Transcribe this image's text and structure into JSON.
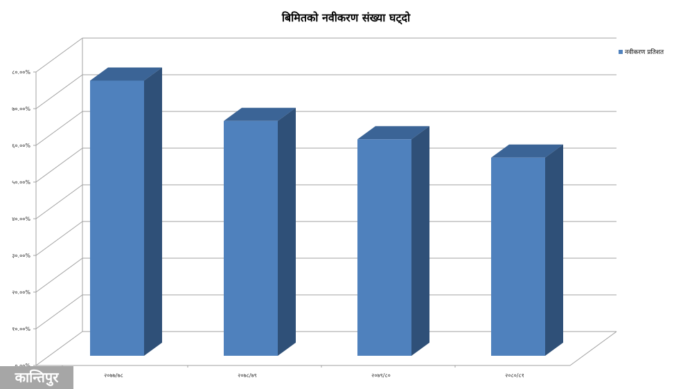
{
  "chart_data": {
    "type": "bar",
    "style": "3d-column",
    "title": "बिमितको नवीकरण संख्या घट्दो",
    "categories": [
      "२०७७/७८",
      "२०७८/७९",
      "२०७९/८०",
      "२०८०/८१"
    ],
    "series": [
      {
        "name": "नवीकरण प्रतिशत",
        "values": [
          75,
          64,
          59,
          54
        ],
        "color": "#4f81bd"
      }
    ],
    "ylim": [
      0,
      80
    ],
    "yticks": [
      "०.००%",
      "१०.००%",
      "२०.००%",
      "३०.००%",
      "४०.००%",
      "५०.००%",
      "६०.००%",
      "७०.००%",
      "८०.००%"
    ],
    "grid": true,
    "legend_position": "top-right"
  },
  "logo": {
    "text": "कान्तिपुर"
  }
}
